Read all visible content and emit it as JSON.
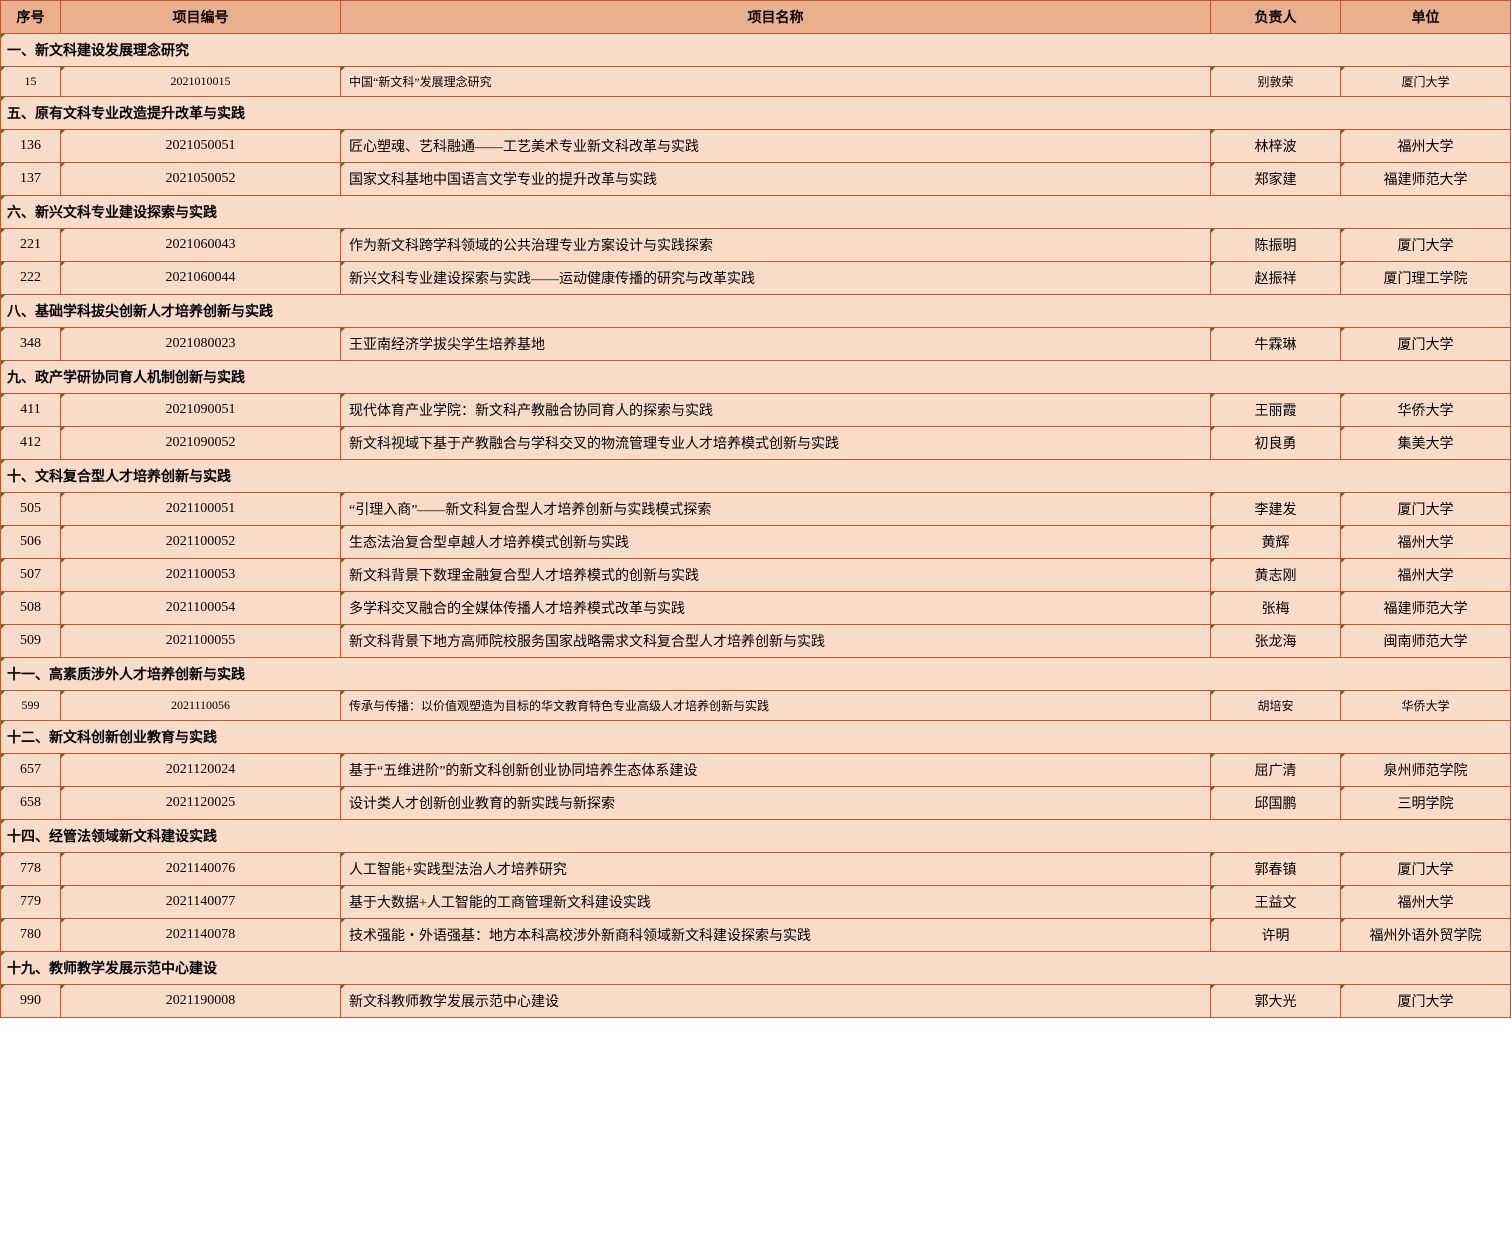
{
  "headers": {
    "seq": "序号",
    "proj_id": "项目编号",
    "proj_name": "项目名称",
    "leader": "负责人",
    "unit": "单位"
  },
  "colors": {
    "header_bg": "#e9af8f",
    "cell_bg": "#f8dcc9",
    "border": "#c0582e",
    "corner": "#2f7d32"
  },
  "sections": [
    {
      "title": "一、新文科建设发展理念研究",
      "small": true,
      "rows": [
        {
          "seq": "15",
          "id": "2021010015",
          "name": "中国“新文科”发展理念研究",
          "leader": "别敦荣",
          "unit": "厦门大学"
        }
      ]
    },
    {
      "title": "五、原有文科专业改造提升改革与实践",
      "rows": [
        {
          "seq": "136",
          "id": "2021050051",
          "name": "匠心塑魂、艺科融通——工艺美术专业新文科改革与实践",
          "leader": "林梓波",
          "unit": "福州大学"
        },
        {
          "seq": "137",
          "id": "2021050052",
          "name": "国家文科基地中国语言文学专业的提升改革与实践",
          "leader": "郑家建",
          "unit": "福建师范大学"
        }
      ]
    },
    {
      "title": "六、新兴文科专业建设探索与实践",
      "rows": [
        {
          "seq": "221",
          "id": "2021060043",
          "name": "作为新文科跨学科领域的公共治理专业方案设计与实践探索",
          "leader": "陈振明",
          "unit": "厦门大学"
        },
        {
          "seq": "222",
          "id": "2021060044",
          "name": "新兴文科专业建设探索与实践——运动健康传播的研究与改革实践",
          "leader": "赵振祥",
          "unit": "厦门理工学院"
        }
      ]
    },
    {
      "title": "八、基础学科拔尖创新人才培养创新与实践",
      "rows": [
        {
          "seq": "348",
          "id": "2021080023",
          "name": "王亚南经济学拔尖学生培养基地",
          "leader": "牛霖琳",
          "unit": "厦门大学"
        }
      ]
    },
    {
      "title": "九、政产学研协同育人机制创新与实践",
      "rows": [
        {
          "seq": "411",
          "id": "2021090051",
          "name": "现代体育产业学院：新文科产教融合协同育人的探索与实践",
          "leader": "王丽霞",
          "unit": "华侨大学"
        },
        {
          "seq": "412",
          "id": "2021090052",
          "name": "新文科视域下基于产教融合与学科交叉的物流管理专业人才培养模式创新与实践",
          "leader": "初良勇",
          "unit": "集美大学"
        }
      ]
    },
    {
      "title": "十、文科复合型人才培养创新与实践",
      "rows": [
        {
          "seq": "505",
          "id": "2021100051",
          "name": "“引理入商”——新文科复合型人才培养创新与实践模式探索",
          "leader": "李建发",
          "unit": "厦门大学"
        },
        {
          "seq": "506",
          "id": "2021100052",
          "name": "生态法治复合型卓越人才培养模式创新与实践",
          "leader": "黄辉",
          "unit": "福州大学"
        },
        {
          "seq": "507",
          "id": "2021100053",
          "name": "新文科背景下数理金融复合型人才培养模式的创新与实践",
          "leader": "黄志刚",
          "unit": "福州大学"
        },
        {
          "seq": "508",
          "id": "2021100054",
          "name": "多学科交叉融合的全媒体传播人才培养模式改革与实践",
          "leader": "张梅",
          "unit": "福建师范大学"
        },
        {
          "seq": "509",
          "id": "2021100055",
          "name": "新文科背景下地方高师院校服务国家战略需求文科复合型人才培养创新与实践",
          "leader": "张龙海",
          "unit": "闽南师范大学"
        }
      ]
    },
    {
      "title": "十一、高素质涉外人才培养创新与实践",
      "small": true,
      "rows": [
        {
          "seq": "599",
          "id": "2021110056",
          "name": "传承与传播：以价值观塑造为目标的华文教育特色专业高级人才培养创新与实践",
          "leader": "胡培安",
          "unit": "华侨大学"
        }
      ]
    },
    {
      "title": "十二、新文科创新创业教育与实践",
      "rows": [
        {
          "seq": "657",
          "id": "2021120024",
          "name": "基于“五维进阶”的新文科创新创业协同培养生态体系建设",
          "leader": "屈广清",
          "unit": "泉州师范学院"
        },
        {
          "seq": "658",
          "id": "2021120025",
          "name": "设计类人才创新创业教育的新实践与新探索",
          "leader": "邱国鹏",
          "unit": "三明学院"
        }
      ]
    },
    {
      "title": "十四、经管法领域新文科建设实践",
      "rows": [
        {
          "seq": "778",
          "id": "2021140076",
          "name": "人工智能+实践型法治人才培养研究",
          "leader": "郭春镇",
          "unit": "厦门大学"
        },
        {
          "seq": "779",
          "id": "2021140077",
          "name": "基于大数据+人工智能的工商管理新文科建设实践",
          "leader": "王益文",
          "unit": "福州大学"
        },
        {
          "seq": "780",
          "id": "2021140078",
          "name": "技术强能・外语强基：地方本科高校涉外新商科领域新文科建设探索与实践",
          "leader": "许明",
          "unit": "福州外语外贸学院"
        }
      ]
    },
    {
      "title": "十九、教师教学发展示范中心建设",
      "rows": [
        {
          "seq": "990",
          "id": "2021190008",
          "name": "新文科教师教学发展示范中心建设",
          "leader": "郭大光",
          "unit": "厦门大学"
        }
      ]
    }
  ]
}
